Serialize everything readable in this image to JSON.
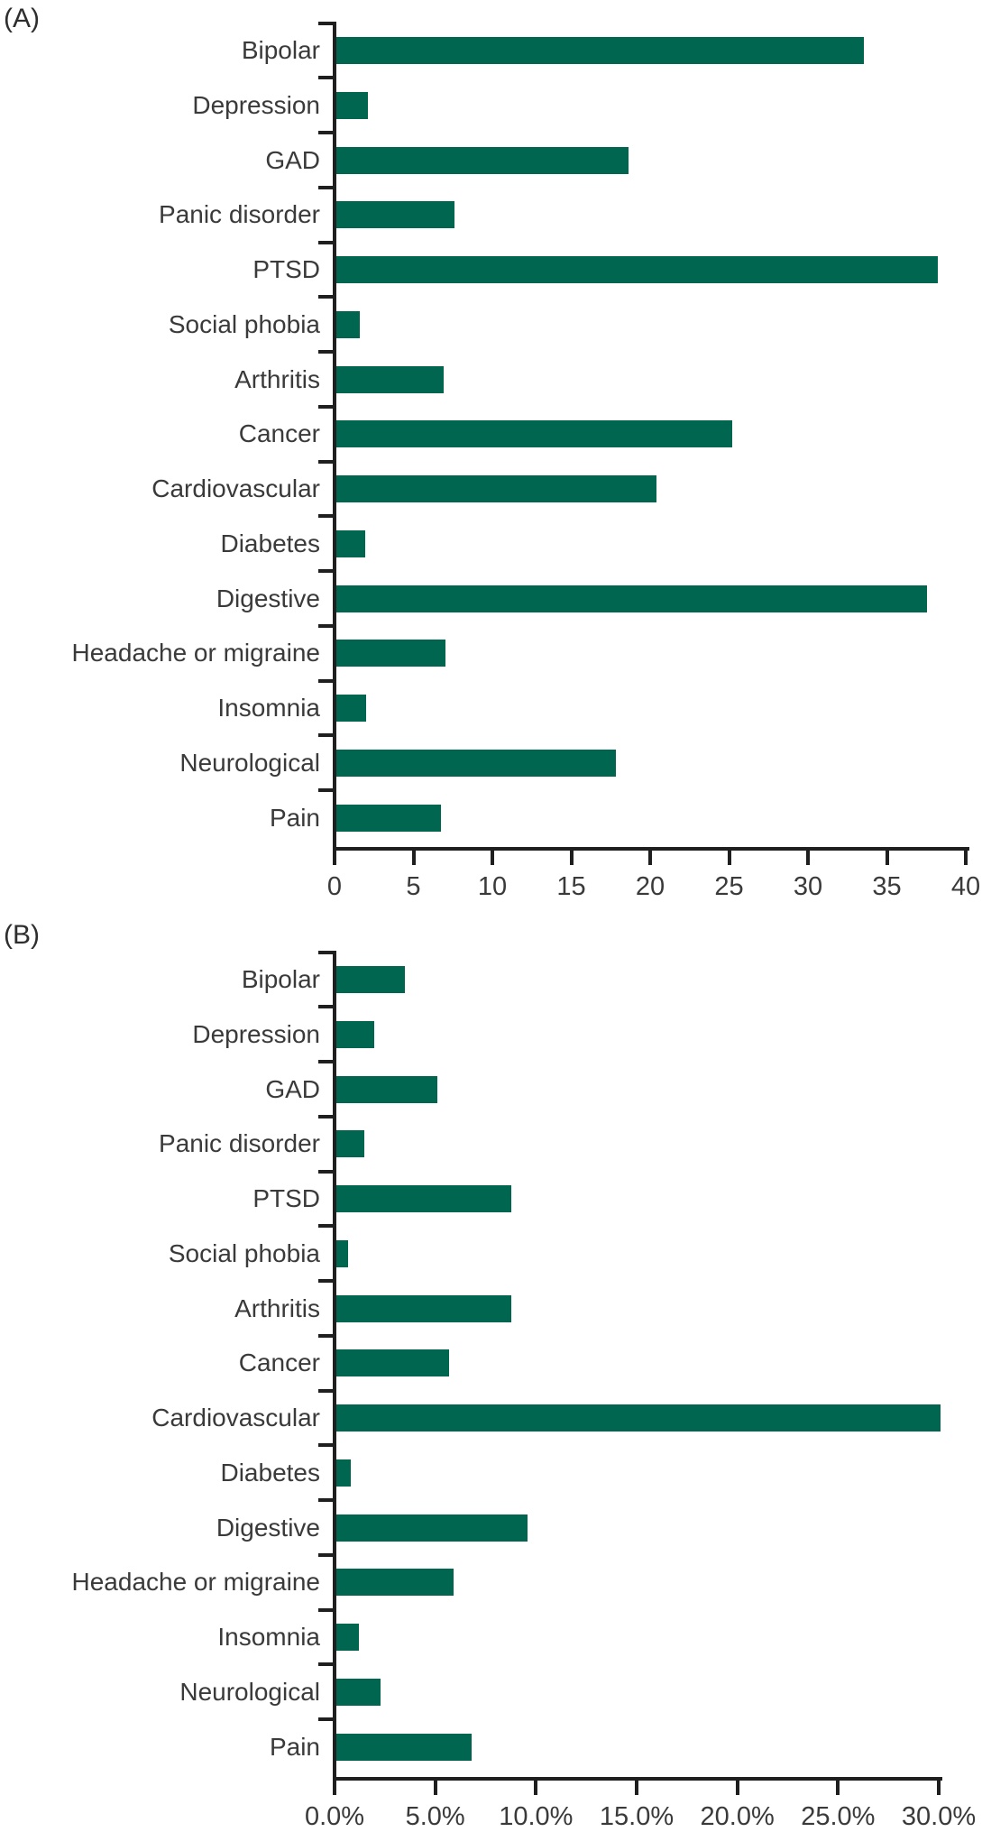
{
  "figure": {
    "panel_a_label": "(A)",
    "panel_b_label": "(B)"
  },
  "colors": {
    "bar": "#00664F",
    "axis": "#1F1F1F",
    "text": "#3A3A3A"
  },
  "chart_data": [
    {
      "type": "bar",
      "orientation": "horizontal",
      "panel_label": "(A)",
      "title": "",
      "xlabel": "",
      "ylabel": "",
      "grid": false,
      "legend": null,
      "categories": [
        "Bipolar",
        "Depression",
        "GAD",
        "Panic disorder",
        "PTSD",
        "Social phobia",
        "Arthritis",
        "Cancer",
        "Cardiovascular",
        "Diabetes",
        "Digestive",
        "Headache or migraine",
        "Insomnia",
        "Neurological",
        "Pain"
      ],
      "values": [
        33.4,
        2.0,
        18.5,
        7.5,
        38.1,
        1.5,
        6.8,
        25.1,
        20.3,
        1.8,
        37.4,
        6.9,
        1.9,
        17.7,
        6.6
      ],
      "xlim": [
        0,
        40
      ],
      "x_tick_labels": [
        "0",
        "5",
        "10",
        "15",
        "20",
        "25",
        "30",
        "35",
        "40"
      ],
      "bar_color": "#00664F"
    },
    {
      "type": "bar",
      "orientation": "horizontal",
      "panel_label": "(B)",
      "title": "",
      "xlabel": "",
      "ylabel": "",
      "grid": false,
      "legend": null,
      "categories": [
        "Bipolar",
        "Depression",
        "GAD",
        "Panic disorder",
        "PTSD",
        "Social phobia",
        "Arthritis",
        "Cancer",
        "Cardiovascular",
        "Diabetes",
        "Digestive",
        "Headache or migraine",
        "Insomnia",
        "Neurological",
        "Pain"
      ],
      "values": [
        3.4,
        1.9,
        5.0,
        1.4,
        8.7,
        0.6,
        8.7,
        5.6,
        30.0,
        0.7,
        9.5,
        5.8,
        1.1,
        2.2,
        6.7
      ],
      "xlim": [
        0,
        30
      ],
      "x_tick_labels": [
        "0.0%",
        "5.0%",
        "10.0%",
        "15.0%",
        "20.0%",
        "25.0%",
        "30.0%"
      ],
      "bar_color": "#00664F"
    }
  ]
}
